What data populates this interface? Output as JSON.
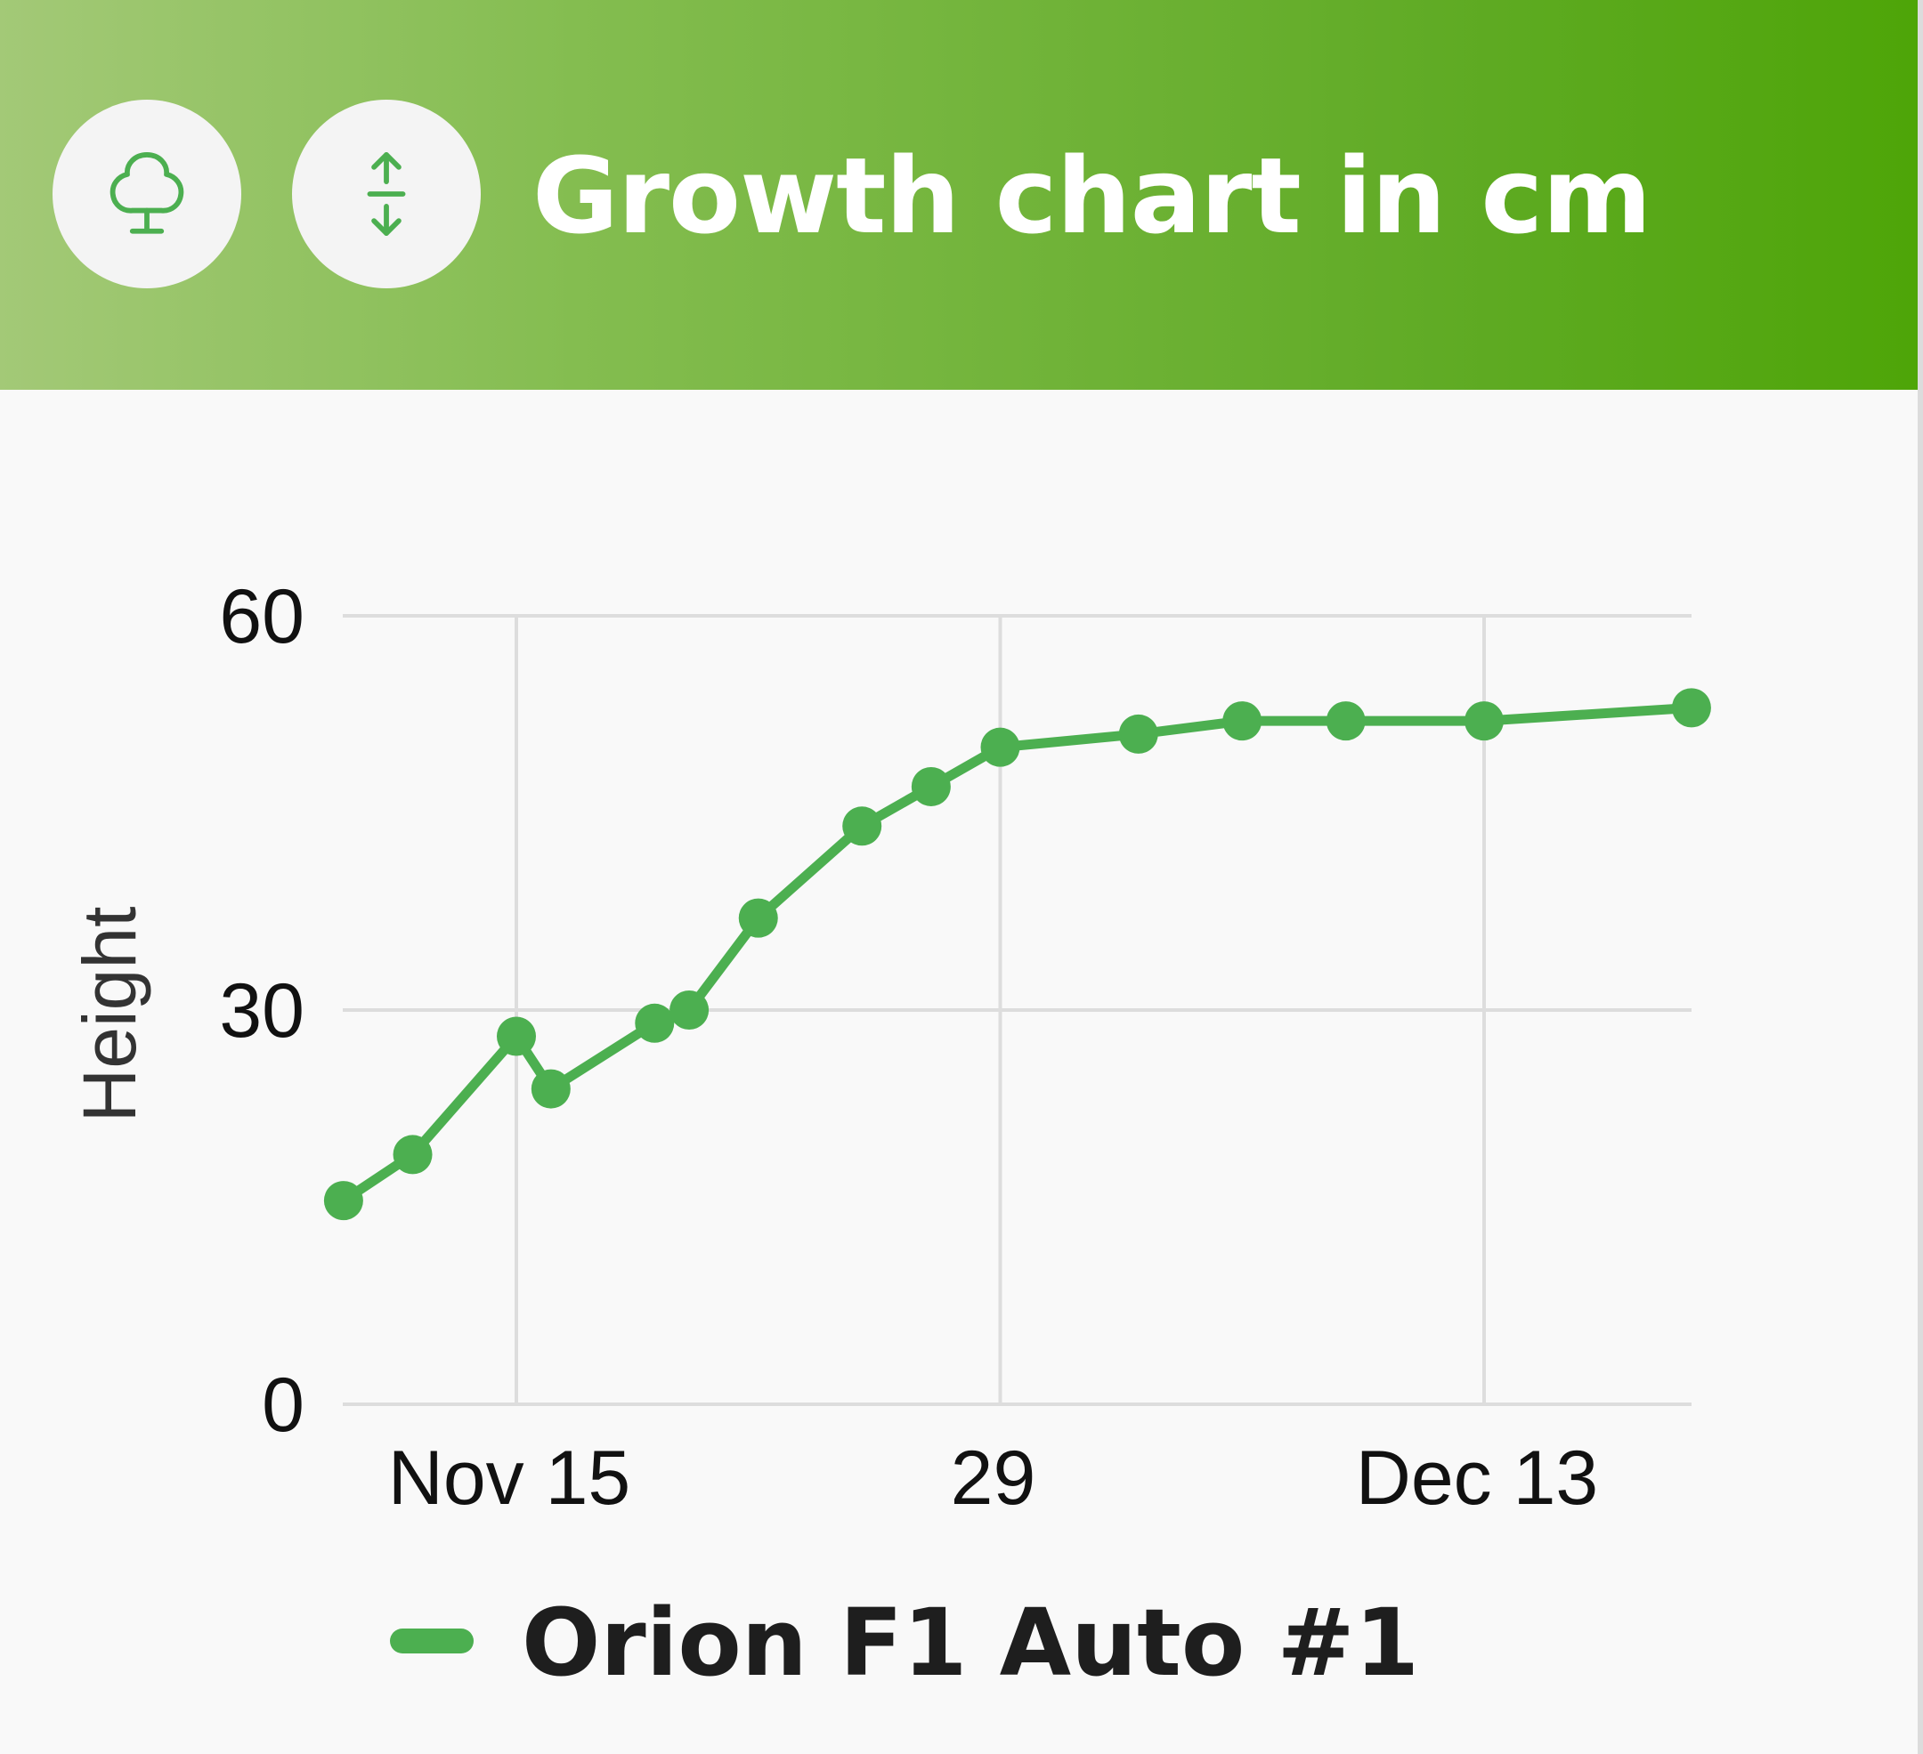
{
  "header": {
    "title": "Growth chart in cm",
    "background_start": "#a3c977",
    "background_end": "#4ea508",
    "icons": [
      {
        "name": "plant-icon"
      },
      {
        "name": "height-arrows-icon"
      }
    ],
    "icon_color": "#4caf50"
  },
  "chart_data": {
    "type": "line",
    "ylabel": "Height",
    "xlabel": "",
    "ylim": [
      0,
      60
    ],
    "yticks": [
      0,
      30,
      60
    ],
    "xlim": [
      "2023-11-11",
      "2023-12-19"
    ],
    "xticks": [
      {
        "date": "2023-11-15",
        "label": "Nov 15"
      },
      {
        "date": "2023-11-29",
        "label": "29"
      },
      {
        "date": "2023-12-13",
        "label": "Dec 13"
      }
    ],
    "grid": true,
    "legend_position": "bottom",
    "series": [
      {
        "name": "Orion F1 Auto #1",
        "color": "#4caf50",
        "x": [
          "2023-11-10",
          "2023-11-12",
          "2023-11-15",
          "2023-11-16",
          "2023-11-19",
          "2023-11-20",
          "2023-11-22",
          "2023-11-25",
          "2023-11-27",
          "2023-11-29",
          "2023-12-03",
          "2023-12-06",
          "2023-12-09",
          "2023-12-13",
          "2023-12-19"
        ],
        "y": [
          15.5,
          19,
          28,
          24,
          29,
          30,
          37,
          44,
          47,
          50,
          51,
          52,
          52,
          52,
          53
        ]
      }
    ]
  }
}
